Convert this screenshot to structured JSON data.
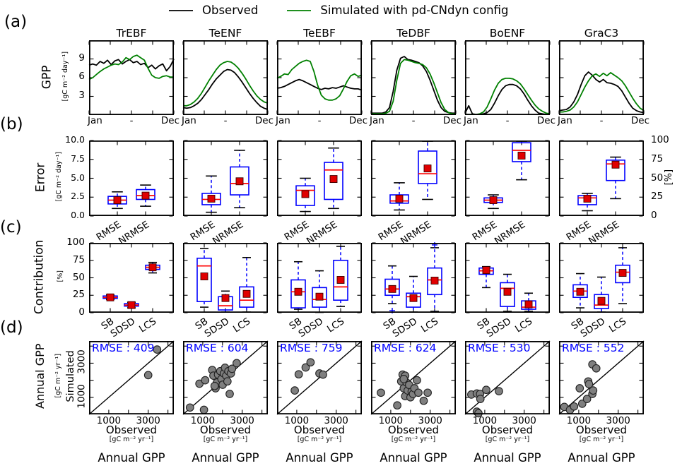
{
  "legend": {
    "observed_label": "Observed",
    "simulated_label": "Simulated with pd-CNdyn config",
    "observed_color": "#000000",
    "simulated_color": "#008000"
  },
  "row_tags": {
    "a": "(a)",
    "b": "(b)",
    "c": "(c)",
    "d": "(d)"
  },
  "axis_labels": {
    "gpp": "GPP",
    "gpp_units": "[gC m⁻² day⁻¹]",
    "error": "Error",
    "error_units": "[gC m⁻² day⁻¹]",
    "contribution": "Contribution",
    "contribution_units": "[%]",
    "right_percent": "[%]",
    "annual_gpp_left": "Annual GPP",
    "annual_gpp_units": "[gC m⁻² yr⁻¹]",
    "simulated": "Simulated",
    "observed": "Observed",
    "annual_gpp_bottom": "Annual GPP"
  },
  "gpp_axis": {
    "ylim": [
      0,
      12
    ],
    "yticks": [
      9,
      6,
      3
    ],
    "ytick_labels": [
      "9",
      "6",
      "3"
    ],
    "xtick_labels": [
      "Jan",
      "-",
      "Dec"
    ]
  },
  "error_axis": {
    "ylim": [
      0,
      10
    ],
    "ytick_values": [
      10,
      7.5,
      5,
      2.5,
      0
    ],
    "ytick_labels_left": [
      "10.0",
      "7.5",
      "5.0",
      "2.5",
      "0.0"
    ],
    "ytick_values_right": [
      100,
      75,
      50,
      25,
      0
    ],
    "ytick_labels_right": [
      "100",
      "75",
      "50",
      "25",
      "0"
    ],
    "categories": [
      "RMSE",
      "NRMSE"
    ]
  },
  "contribution_axis": {
    "ylim": [
      0,
      100
    ],
    "ytick_values": [
      100,
      75,
      50,
      25,
      0
    ],
    "ytick_labels": [
      "100",
      "75",
      "50",
      "25",
      "0"
    ],
    "categories": [
      "SB",
      "SDSD",
      "LCS"
    ]
  },
  "scatter_axis": {
    "lim": [
      0,
      4300
    ],
    "ticks": [
      1000,
      2000,
      3000,
      4000
    ],
    "xtick_values": [
      1000,
      3000
    ],
    "xtick_labels": [
      "1000",
      "3000"
    ],
    "ytick_values": [
      3000,
      1000
    ],
    "ytick_labels": [
      "3000",
      "1000"
    ]
  },
  "colors": {
    "box": "#0000ff",
    "median": "#ff0000",
    "mean_fill": "#e00000",
    "mean_edge": "#3d0000",
    "whisker_cap": "#000000",
    "scatter_fill": "#7f7f7f",
    "scatter_edge": "#202020",
    "rmse_text": "#0000ff",
    "diagonal": "#000000",
    "frame": "#000000"
  },
  "chart_data": {
    "type": "multi-panel",
    "panels": [
      {
        "pft": "TrEBF",
        "gpp": {
          "observed": [
            8.0,
            8.2,
            8.0,
            8.6,
            8.3,
            8.8,
            8.1,
            8.7,
            8.9,
            8.2,
            8.6,
            8.9,
            8.4,
            8.6,
            8.1,
            8.3,
            7.6,
            8.0,
            7.4,
            7.9,
            8.2,
            7.1,
            7.8,
            9.0
          ],
          "simulated": [
            5.7,
            6.0,
            6.5,
            7.0,
            7.4,
            7.7,
            8.0,
            8.2,
            8.1,
            8.5,
            9.2,
            8.9,
            9.4,
            9.6,
            9.2,
            8.8,
            7.5,
            6.4,
            6.0,
            5.9,
            6.2,
            6.3,
            6.1,
            6.1
          ]
        },
        "error_boxes": [
          {
            "label": "RMSE",
            "wlo": 1.0,
            "q1": 1.6,
            "med": 2.1,
            "q3": 2.6,
            "whi": 3.2,
            "mean": 2.1
          },
          {
            "label": "NRMSE",
            "wlo": 1.3,
            "q1": 2.2,
            "med": 2.7,
            "q3": 3.5,
            "whi": 4.1,
            "mean": 2.7
          }
        ],
        "contribution_boxes": [
          {
            "label": "SB",
            "wlo": 19,
            "q1": 20.5,
            "med": 22,
            "q3": 24,
            "whi": 25.5,
            "mean": 22
          },
          {
            "label": "SDSD",
            "wlo": 7,
            "q1": 9.5,
            "med": 11,
            "q3": 13,
            "whi": 15,
            "mean": 11
          },
          {
            "label": "LCS",
            "wlo": 57,
            "q1": 62,
            "med": 65,
            "q3": 68,
            "whi": 72,
            "mean": 65
          }
        ],
        "scatter": {
          "rmse_label": "RMSE : 409",
          "points": [
            [
              3000,
              2300
            ],
            [
              3450,
              3800
            ]
          ]
        }
      },
      {
        "pft": "TeENF",
        "gpp": {
          "observed": [
            1.2,
            1.1,
            1.2,
            1.5,
            1.9,
            2.5,
            3.3,
            4.1,
            5.0,
            5.8,
            6.4,
            7.0,
            7.3,
            7.2,
            6.8,
            6.1,
            5.3,
            4.4,
            3.5,
            2.7,
            2.0,
            1.4,
            1.1,
            0.9
          ],
          "simulated": [
            1.5,
            1.5,
            1.7,
            2.1,
            2.7,
            3.5,
            4.5,
            5.5,
            6.4,
            7.3,
            8.0,
            8.4,
            8.6,
            8.5,
            8.1,
            7.5,
            6.7,
            5.8,
            4.8,
            3.9,
            3.1,
            2.5,
            2.1,
            1.9
          ]
        },
        "error_boxes": [
          {
            "label": "RMSE",
            "wlo": 0.5,
            "q1": 1.5,
            "med": 2.2,
            "q3": 3.0,
            "whi": 5.3,
            "mean": 2.3
          },
          {
            "label": "NRMSE",
            "wlo": 1.1,
            "q1": 2.8,
            "med": 4.3,
            "q3": 6.5,
            "whi": 8.7,
            "mean": 4.6
          }
        ],
        "contribution_boxes": [
          {
            "label": "SB",
            "wlo": 8,
            "q1": 16,
            "med": 67,
            "q3": 78,
            "whi": 92,
            "mean": 52
          },
          {
            "label": "SDSD",
            "wlo": 1,
            "q1": 4,
            "med": 10,
            "q3": 23,
            "whi": 31,
            "mean": 21
          },
          {
            "label": "LCS",
            "wlo": 1,
            "q1": 8,
            "med": 18,
            "q3": 37,
            "whi": 79,
            "mean": 27
          }
        ],
        "scatter": {
          "rmse_label": "RMSE : 604",
          "points": [
            [
              350,
              400
            ],
            [
              1060,
              270
            ],
            [
              830,
              1800
            ],
            [
              1120,
              2000
            ],
            [
              1480,
              2600
            ],
            [
              1540,
              2270
            ],
            [
              1650,
              1530
            ],
            [
              1715,
              1865
            ],
            [
              1775,
              2335
            ],
            [
              1890,
              2535
            ],
            [
              1950,
              2070
            ],
            [
              2010,
              1735
            ],
            [
              2070,
              2400
            ],
            [
              2130,
              2735
            ],
            [
              2190,
              2270
            ],
            [
              2250,
              1935
            ],
            [
              2300,
              2535
            ],
            [
              2365,
              1200
            ],
            [
              2425,
              2400
            ],
            [
              2485,
              2670
            ],
            [
              2720,
              3000
            ],
            [
              1600,
              1665
            ]
          ]
        }
      },
      {
        "pft": "TeEBF",
        "gpp": {
          "observed": [
            4.3,
            4.4,
            4.6,
            4.9,
            5.2,
            5.5,
            5.7,
            5.5,
            5.2,
            4.9,
            4.6,
            4.3,
            4.1,
            4.3,
            4.2,
            4.4,
            4.3,
            4.5,
            4.7,
            4.5,
            4.3,
            4.2,
            4.2,
            4.0
          ],
          "simulated": [
            5.9,
            6.2,
            6.6,
            6.5,
            7.3,
            7.8,
            8.3,
            8.6,
            8.8,
            8.6,
            7.0,
            4.8,
            3.2,
            2.6,
            2.4,
            2.4,
            2.6,
            3.1,
            4.2,
            5.4,
            6.3,
            6.6,
            6.2,
            6.4
          ]
        },
        "error_boxes": [
          {
            "label": "RMSE",
            "wlo": 0.6,
            "q1": 1.4,
            "med": 3.4,
            "q3": 4.0,
            "whi": 5.0,
            "mean": 2.9
          },
          {
            "label": "NRMSE",
            "wlo": 1.0,
            "q1": 2.2,
            "med": 6.1,
            "q3": 7.1,
            "whi": 9.0,
            "mean": 4.9
          }
        ],
        "contribution_boxes": [
          {
            "label": "SB",
            "wlo": 5,
            "q1": 7,
            "med": 30,
            "q3": 47,
            "whi": 73,
            "mean": 30
          },
          {
            "label": "SDSD",
            "wlo": 0.5,
            "q1": 8,
            "med": 19,
            "q3": 36,
            "whi": 60,
            "mean": 23
          },
          {
            "label": "LCS",
            "wlo": 9,
            "q1": 18,
            "med": 37,
            "q3": 75,
            "whi": 95,
            "mean": 47
          }
        ],
        "scatter": {
          "rmse_label": "RMSE : 759",
          "points": [
            [
              900,
              1400
            ],
            [
              1100,
              2350
            ],
            [
              1450,
              2750
            ],
            [
              1700,
              3050
            ],
            [
              2150,
              2400
            ],
            [
              2330,
              2330
            ]
          ]
        }
      },
      {
        "pft": "TeDBF",
        "gpp": {
          "observed": [
            0.3,
            0.3,
            0.3,
            0.3,
            0.5,
            1.2,
            3.8,
            7.2,
            9.1,
            9.4,
            8.9,
            8.8,
            8.6,
            8.4,
            7.9,
            7.0,
            5.6,
            4.0,
            2.4,
            1.2,
            0.6,
            0.4,
            0.3,
            0.3
          ],
          "simulated": [
            0.2,
            0.2,
            0.2,
            0.2,
            0.3,
            0.6,
            2.2,
            5.6,
            8.3,
            8.9,
            8.8,
            8.6,
            8.4,
            8.3,
            8.1,
            7.6,
            6.6,
            5.2,
            3.6,
            2.0,
            0.9,
            0.4,
            0.2,
            0.2
          ]
        },
        "error_boxes": [
          {
            "label": "RMSE",
            "wlo": 0.8,
            "q1": 1.7,
            "med": 2.0,
            "q3": 2.8,
            "whi": 4.4,
            "mean": 2.3
          },
          {
            "label": "NRMSE",
            "wlo": 2.2,
            "q1": 4.3,
            "med": 5.6,
            "q3": 8.6,
            "whi": 9.9,
            "mean": 6.3
          }
        ],
        "contribution_boxes": [
          {
            "label": "SB",
            "wlo": 13,
            "q1": 25,
            "med": 34,
            "q3": 48,
            "whi": 67,
            "mean": 34,
            "outliers": [
              3
            ]
          },
          {
            "label": "SDSD",
            "wlo": 1,
            "q1": 8,
            "med": 23,
            "q3": 28,
            "whi": 52,
            "mean": 21
          },
          {
            "label": "LCS",
            "wlo": 2,
            "q1": 26,
            "med": 47,
            "q3": 64,
            "whi": 93,
            "mean": 46,
            "outliers": [
              97
            ]
          }
        ],
        "scatter": {
          "rmse_label": "RMSE : 624",
          "points": [
            [
              500,
              1270
            ],
            [
              1330,
              530
            ],
            [
              1530,
              1930
            ],
            [
              1600,
              2330
            ],
            [
              1730,
              2270
            ],
            [
              1660,
              1530
            ],
            [
              1730,
              1070
            ],
            [
              1800,
              1870
            ],
            [
              1860,
              1400
            ],
            [
              1930,
              1730
            ],
            [
              2000,
              1000
            ],
            [
              2060,
              1330
            ],
            [
              2130,
              1200
            ],
            [
              2200,
              1530
            ],
            [
              2330,
              2000
            ],
            [
              2400,
              1270
            ],
            [
              2670,
              800
            ],
            [
              2870,
              1270
            ],
            [
              1660,
              2070
            ]
          ]
        }
      },
      {
        "pft": "BoENF",
        "gpp": {
          "observed": [
            0.3,
            1.5,
            0.2,
            0.1,
            0.1,
            0.2,
            0.4,
            0.9,
            1.9,
            3.1,
            4.1,
            4.7,
            4.9,
            4.9,
            4.7,
            4.2,
            3.4,
            2.4,
            1.5,
            0.8,
            0.3,
            0.2,
            0.1,
            0.1
          ],
          "simulated": [
            0.1,
            0.1,
            0.1,
            0.1,
            0.2,
            0.5,
            1.3,
            2.6,
            4.0,
            5.1,
            5.7,
            5.9,
            5.9,
            5.8,
            5.5,
            5.0,
            4.2,
            3.3,
            2.4,
            1.6,
            1.0,
            0.6,
            0.3,
            0.2
          ]
        },
        "error_boxes": [
          {
            "label": "RMSE",
            "wlo": 1.0,
            "q1": 1.8,
            "med": 2.1,
            "q3": 2.4,
            "whi": 2.8,
            "mean": 2.1
          },
          {
            "label": "NRMSE",
            "wlo": 4.8,
            "q1": 7.2,
            "med": 8.7,
            "q3": 9.7,
            "whi": 9.9,
            "mean": 8.0
          }
        ],
        "contribution_boxes": [
          {
            "label": "SB",
            "wlo": 36,
            "q1": 55,
            "med": 60,
            "q3": 64,
            "whi": 66,
            "mean": 61
          },
          {
            "label": "SDSD",
            "wlo": 2,
            "q1": 9,
            "med": 35,
            "q3": 43,
            "whi": 55,
            "mean": 30
          },
          {
            "label": "LCS",
            "wlo": 2,
            "q1": 5,
            "med": 8,
            "q3": 17,
            "whi": 28,
            "mean": 12
          }
        ],
        "scatter": {
          "rmse_label": "RMSE : 530",
          "points": [
            [
              320,
              1160
            ],
            [
              600,
              1225
            ],
            [
              765,
              1200
            ],
            [
              777,
              905
            ],
            [
              1075,
              1440
            ],
            [
              1720,
              1360
            ],
            [
              600,
              160
            ],
            [
              680,
              65
            ]
          ]
        }
      },
      {
        "pft": "GraC3",
        "gpp": {
          "observed": [
            0.7,
            0.8,
            0.9,
            1.3,
            2.1,
            3.3,
            4.9,
            6.3,
            6.9,
            6.4,
            5.7,
            5.3,
            5.7,
            5.2,
            5.1,
            4.9,
            4.6,
            3.9,
            2.9,
            1.9,
            1.1,
            0.7,
            0.5,
            0.4
          ],
          "simulated": [
            0.5,
            0.5,
            0.6,
            0.8,
            1.3,
            2.1,
            3.3,
            4.5,
            5.5,
            6.3,
            6.6,
            6.2,
            6.7,
            6.3,
            6.8,
            6.4,
            6.0,
            5.5,
            4.7,
            3.7,
            2.7,
            1.8,
            1.1,
            0.7
          ]
        },
        "error_boxes": [
          {
            "label": "RMSE",
            "wlo": 0.7,
            "q1": 1.5,
            "med": 2.4,
            "q3": 2.7,
            "whi": 3.0,
            "mean": 2.3
          },
          {
            "label": "NRMSE",
            "wlo": 2.3,
            "q1": 4.7,
            "med": 6.9,
            "q3": 7.4,
            "whi": 7.8,
            "mean": 6.8
          }
        ],
        "contribution_boxes": [
          {
            "label": "SB",
            "wlo": 7,
            "q1": 22,
            "med": 31,
            "q3": 40,
            "whi": 56,
            "mean": 30
          },
          {
            "label": "SDSD",
            "wlo": 1,
            "q1": 6,
            "med": 11,
            "q3": 26,
            "whi": 51,
            "mean": 17
          },
          {
            "label": "LCS",
            "wlo": 13,
            "q1": 43,
            "med": 58,
            "q3": 68,
            "whi": 93,
            "mean": 57
          }
        ],
        "scatter": {
          "rmse_label": "RMSE : 552",
          "points": [
            [
              270,
              440
            ],
            [
              555,
              265
            ],
            [
              765,
              465
            ],
            [
              1175,
              625
            ],
            [
              1420,
              905
            ],
            [
              1050,
              1530
            ],
            [
              1480,
              1930
            ],
            [
              1520,
              1775
            ],
            [
              1690,
              1200
            ],
            [
              1730,
              1400
            ],
            [
              1690,
              2930
            ],
            [
              1890,
              2695
            ]
          ]
        }
      }
    ]
  }
}
